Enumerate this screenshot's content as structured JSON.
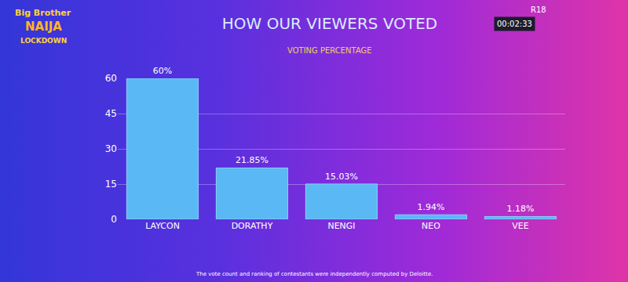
{
  "chart_data": {
    "type": "bar",
    "title": "HOW OUR VIEWERS VOTED",
    "subtitle": "VOTING PERCENTAGE",
    "categories": [
      "LAYCON",
      "DORATHY",
      "NENGI",
      "NEO",
      "VEE"
    ],
    "values": [
      60,
      21.85,
      15.03,
      1.94,
      1.18
    ],
    "value_labels": [
      "60%",
      "21.85%",
      "15.03%",
      "1.94%",
      "1.18%"
    ],
    "data_labels": true,
    "color": "#5ab8f5",
    "ylim": [
      0,
      60
    ],
    "yticks": [
      0,
      15,
      30,
      45,
      60
    ],
    "grid": true,
    "annotations": [
      "Big Brother",
      "NAIJA",
      "LOCKDOWN",
      "R18",
      "00:02:33",
      "The vote count and ranking of contestants were independently computed by Deloitte."
    ]
  }
}
